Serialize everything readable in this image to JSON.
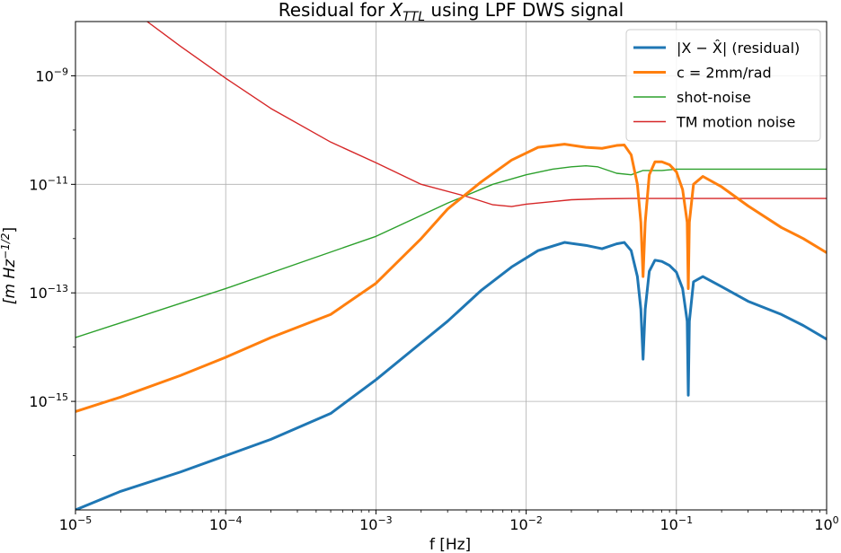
{
  "chart_data": {
    "type": "line",
    "title_prefix": "Residual for ",
    "title_var": "X",
    "title_sub": "TTL",
    "title_suffix": " using LPF DWS signal",
    "xlabel": "f [Hz]",
    "ylabel": "[m Hz",
    "ylabel_sup": "−1/2",
    "ylabel_end": "]",
    "x_scale": "log",
    "y_scale": "log",
    "xlim": [
      1e-05,
      1
    ],
    "ylim": [
      1e-17,
      1e-08
    ],
    "x_ticks": [
      {
        "value": 1e-05,
        "base": "10",
        "exp": "−5"
      },
      {
        "value": 0.0001,
        "base": "10",
        "exp": "−4"
      },
      {
        "value": 0.001,
        "base": "10",
        "exp": "−3"
      },
      {
        "value": 0.01,
        "base": "10",
        "exp": "−2"
      },
      {
        "value": 0.1,
        "base": "10",
        "exp": "−1"
      },
      {
        "value": 1,
        "base": "10",
        "exp": "0"
      }
    ],
    "y_ticks": [
      {
        "value": 1e-09,
        "base": "10",
        "exp": "−9"
      },
      {
        "value": 1e-11,
        "base": "10",
        "exp": "−11"
      },
      {
        "value": 1e-13,
        "base": "10",
        "exp": "−13"
      },
      {
        "value": 1e-15,
        "base": "10",
        "exp": "−15"
      }
    ],
    "grid": true,
    "legend_position": "top-right",
    "series": [
      {
        "name": "|X − X̂| (residual)",
        "color": "#1f77b4",
        "width": 3,
        "x": [
          1e-05,
          2e-05,
          5e-05,
          0.0001,
          0.0002,
          0.0005,
          0.001,
          0.002,
          0.003,
          0.005,
          0.008,
          0.012,
          0.018,
          0.025,
          0.032,
          0.04,
          0.045,
          0.05,
          0.055,
          0.058,
          0.06,
          0.062,
          0.066,
          0.072,
          0.08,
          0.09,
          0.1,
          0.11,
          0.118,
          0.12,
          0.122,
          0.13,
          0.15,
          0.2,
          0.3,
          0.5,
          0.7,
          1
        ],
        "y": [
          1e-17,
          2.2e-17,
          5e-17,
          1e-16,
          2e-16,
          6e-16,
          2.5e-15,
          1.2e-14,
          3e-14,
          1.1e-13,
          3e-13,
          6e-13,
          8.5e-13,
          7.5e-13,
          6.5e-13,
          8e-13,
          8.5e-13,
          6e-13,
          2e-13,
          5e-14,
          6e-15,
          5e-14,
          2.5e-13,
          4e-13,
          3.8e-13,
          3.2e-13,
          2.4e-13,
          1.2e-13,
          3e-14,
          1.3e-15,
          3e-14,
          1.6e-13,
          2e-13,
          1.3e-13,
          7e-14,
          4e-14,
          2.5e-14,
          1.4e-14
        ]
      },
      {
        "name": "c = 2mm/rad",
        "color": "#ff7f0e",
        "width": 3,
        "x": [
          1e-05,
          2e-05,
          5e-05,
          0.0001,
          0.0002,
          0.0005,
          0.001,
          0.002,
          0.003,
          0.005,
          0.008,
          0.012,
          0.018,
          0.025,
          0.032,
          0.04,
          0.045,
          0.05,
          0.055,
          0.058,
          0.06,
          0.062,
          0.066,
          0.072,
          0.08,
          0.09,
          0.1,
          0.11,
          0.118,
          0.12,
          0.122,
          0.13,
          0.15,
          0.2,
          0.3,
          0.5,
          0.7,
          1
        ],
        "y": [
          6.5e-16,
          1.2e-15,
          3e-15,
          6.5e-15,
          1.5e-14,
          4e-14,
          1.5e-13,
          1e-12,
          3.5e-12,
          1.1e-11,
          2.8e-11,
          4.8e-11,
          5.5e-11,
          4.8e-11,
          4.6e-11,
          5.2e-11,
          5.3e-11,
          3.5e-11,
          1e-11,
          2e-12,
          2e-13,
          2e-12,
          1.5e-11,
          2.6e-11,
          2.6e-11,
          2.3e-11,
          1.7e-11,
          8e-12,
          2e-12,
          1.2e-13,
          2e-12,
          1e-11,
          1.4e-11,
          9e-12,
          4e-12,
          1.6e-12,
          1e-12,
          5.5e-13
        ]
      },
      {
        "name": "shot-noise",
        "color": "#2ca02c",
        "width": 1.4,
        "x": [
          1e-05,
          0.0001,
          0.001,
          0.003,
          0.006,
          0.01,
          0.015,
          0.02,
          0.025,
          0.03,
          0.04,
          0.05,
          0.06,
          0.08,
          0.1,
          0.15,
          0.2,
          0.3,
          0.5,
          1
        ],
        "y": [
          1.5e-14,
          1.2e-13,
          1.1e-12,
          4.5e-12,
          1e-11,
          1.5e-11,
          1.9e-11,
          2.1e-11,
          2.2e-11,
          2.1e-11,
          1.6e-11,
          1.5e-11,
          1.8e-11,
          1.8e-11,
          1.9e-11,
          1.9e-11,
          1.9e-11,
          1.9e-11,
          1.9e-11,
          1.9e-11
        ]
      },
      {
        "name": "TM motion noise",
        "color": "#d62728",
        "width": 1.4,
        "x": [
          1e-05,
          3e-05,
          5e-05,
          0.0001,
          0.0002,
          0.0005,
          0.001,
          0.002,
          0.004,
          0.006,
          0.008,
          0.01,
          0.015,
          0.02,
          0.03,
          0.05,
          0.06,
          0.08,
          0.1,
          0.2,
          0.5,
          1
        ],
        "y": [
          5e-08,
          1e-08,
          3.5e-09,
          9e-10,
          2.5e-10,
          6e-11,
          2.5e-11,
          1e-11,
          6e-12,
          4.2e-12,
          3.9e-12,
          4.3e-12,
          4.8e-12,
          5.2e-12,
          5.4e-12,
          5.5e-12,
          5.5e-12,
          5.5e-12,
          5.5e-12,
          5.5e-12,
          5.5e-12,
          5.5e-12
        ]
      }
    ]
  }
}
